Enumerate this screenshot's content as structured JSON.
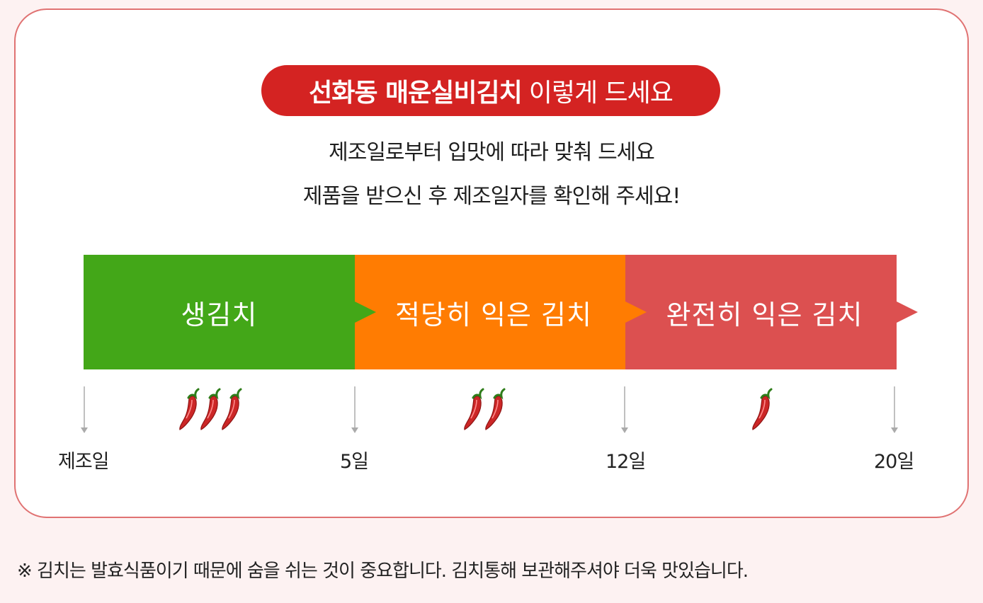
{
  "header": {
    "title_bold": "선화동 매운실비김치",
    "title_light": "이렇게 드세요",
    "sub_line_1": "제조일로부터 입맛에 따라 맞춰 드세요",
    "sub_line_2": "제품을 받으신 후 제조일자를 확인해 주세요!"
  },
  "stages": [
    {
      "label": "생김치",
      "color": "#43a718",
      "peppers": 3
    },
    {
      "label": "적당히 익은 김치",
      "color": "#ff7c02",
      "peppers": 2
    },
    {
      "label": "완전히 익은 김치",
      "color": "#dc5050",
      "peppers": 1
    }
  ],
  "milestones": [
    "제조일",
    "5일",
    "12일",
    "20일"
  ],
  "footnote": "※ 김치는 발효식품이기 때문에 숨을 쉬는 것이 중요합니다. 김치통해 보관해주셔야 더욱 맛있습니다.",
  "colors": {
    "accent": "#d42322",
    "border": "#e07272",
    "background": "#fdf2f2"
  },
  "icons": {
    "stage_marker": "chili-pepper-icon",
    "tick": "arrow-down-icon"
  }
}
